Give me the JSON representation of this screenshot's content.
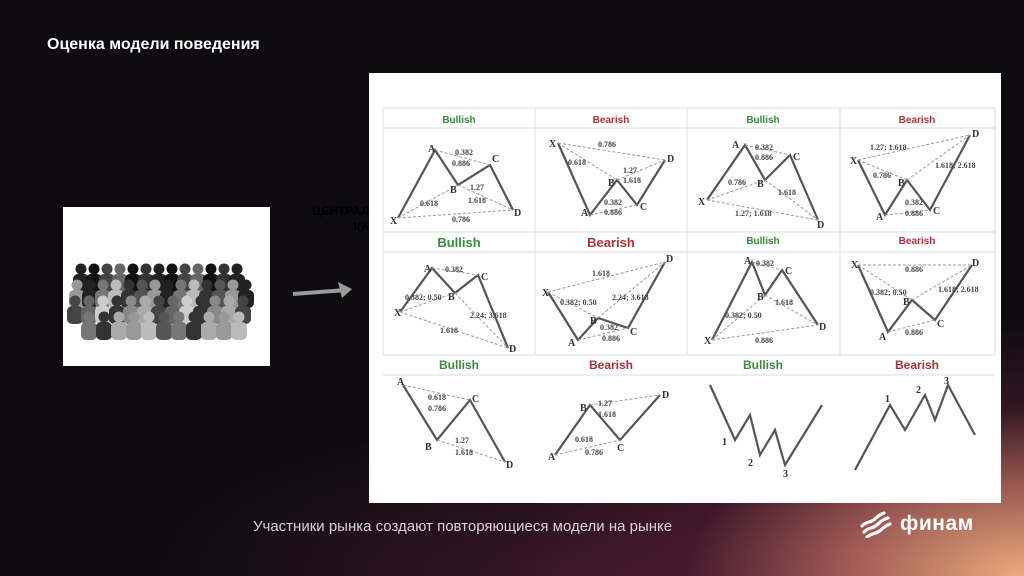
{
  "slide": {
    "title": "Оценка модели поведения",
    "caption": "Участники рынка создают повторяющиеся модели на рынке",
    "hidden_text_line1": "ЦЕНТРАЛИ",
    "hidden_text_line2": "КАП"
  },
  "brand": {
    "name": "финам",
    "icon": "finam-waves-logo"
  },
  "colors": {
    "bullish": "#3a8a3a",
    "bearish": "#b0303a",
    "accent": "#f0a070"
  },
  "patterns": {
    "headers": [
      "Bullish",
      "Bearish",
      "Bullish",
      "Bearish",
      "Bullish",
      "Bearish",
      "Bullish",
      "Bearish",
      "Bullish",
      "Bearish",
      "Bullish",
      "Bearish"
    ],
    "points": {
      "x": "X",
      "a": "A",
      "b": "B",
      "c": "C",
      "d": "D",
      "one": "1",
      "two": "2",
      "three": "3"
    },
    "ratios": {
      "r0382": "0.382",
      "r0886": "0.886",
      "r127": "1.27",
      "r1618": "1.618",
      "r0618": "0.618",
      "r0786": "0.786",
      "r127_1618": "1.27; 1.618",
      "r1618_2618": "1.618; 2.618",
      "r224_3618": "2.24; 3.618",
      "r0382_05": "0.382; 0.50"
    }
  }
}
